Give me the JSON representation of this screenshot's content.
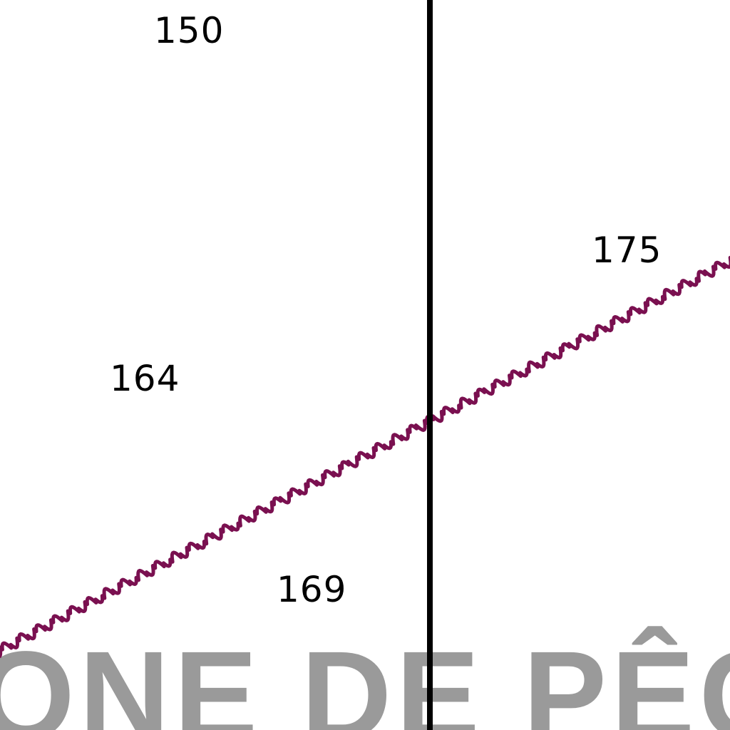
{
  "map": {
    "soundings": [
      "150",
      "175",
      "164",
      "169"
    ],
    "zone_label": "ONE DE PÊCH",
    "colors": {
      "cable_line": "#7a1050",
      "boundary_line": "#000000",
      "zone_label": "#9a9a9a",
      "soundings": "#000000",
      "background": "#ffffff"
    },
    "features": {
      "cable_line_style": "wavy",
      "boundary_line_style": "solid"
    }
  }
}
